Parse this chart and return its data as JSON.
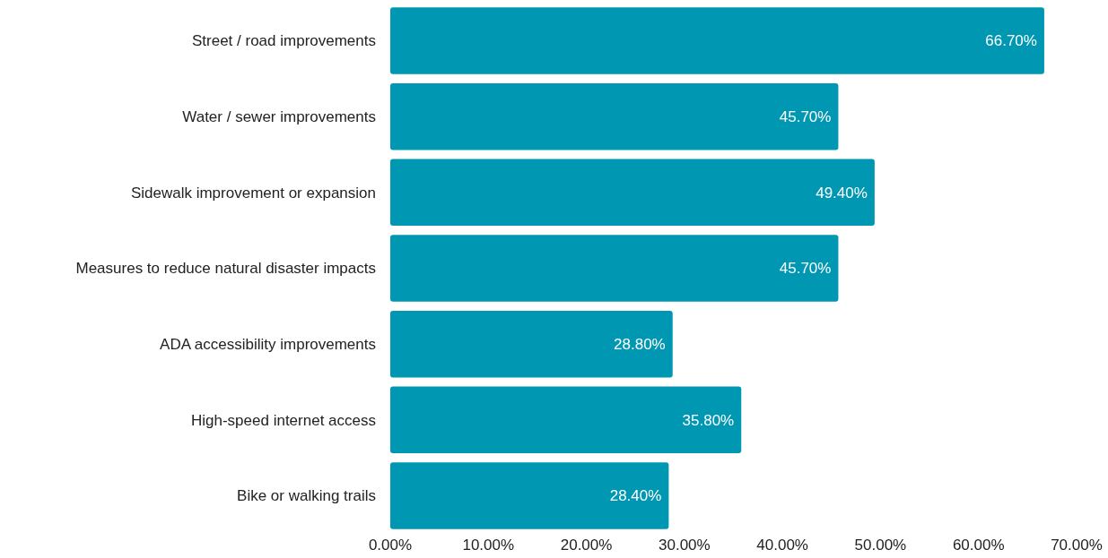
{
  "chart_data": {
    "type": "bar",
    "orientation": "horizontal",
    "categories": [
      "Street / road improvements",
      "Water / sewer improvements",
      "Sidewalk improvement or expansion",
      "Measures to reduce natural disaster impacts",
      "ADA accessibility improvements",
      "High-speed internet access",
      "Bike or walking trails"
    ],
    "values": [
      66.7,
      45.7,
      49.4,
      45.7,
      28.8,
      35.8,
      28.4
    ],
    "value_labels": [
      "66.70%",
      "45.70%",
      "49.40%",
      "45.70%",
      "28.80%",
      "35.80%",
      "28.40%"
    ],
    "color": "#0097b2",
    "xlim": [
      0,
      70
    ],
    "xticks": [
      {
        "value": 0,
        "label": "0.00%"
      },
      {
        "value": 10,
        "label": "10.00%"
      },
      {
        "value": 20,
        "label": "20.00%"
      },
      {
        "value": 30,
        "label": "30.00%"
      },
      {
        "value": 40,
        "label": "40.00%"
      },
      {
        "value": 50,
        "label": "50.00%"
      },
      {
        "value": 60,
        "label": "60.00%"
      },
      {
        "value": 70,
        "label": "70.00%"
      }
    ],
    "grid": false
  }
}
